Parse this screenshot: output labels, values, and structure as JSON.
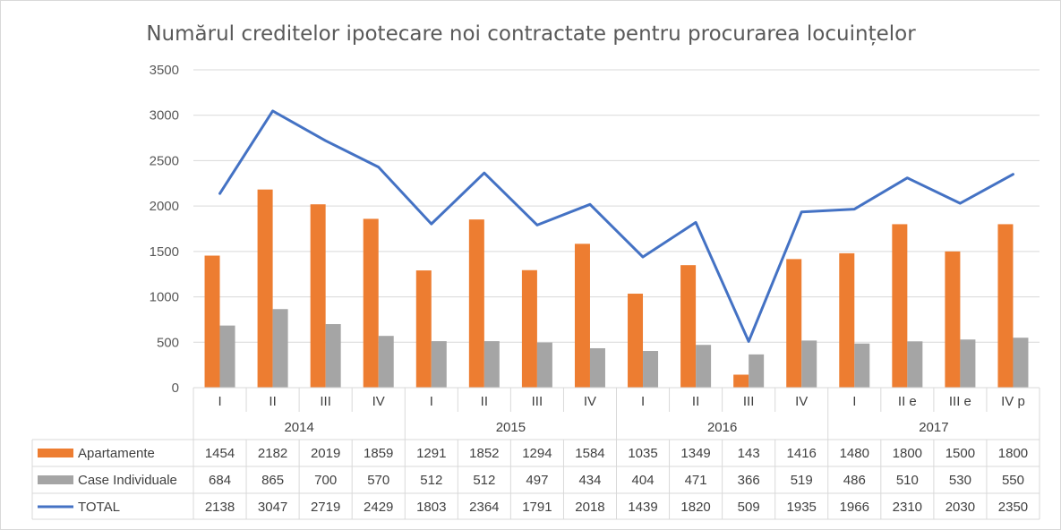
{
  "chart_data": {
    "type": "bar",
    "title": "Numărul creditelor ipotecare noi contractate pentru procurarea locuințelor",
    "ylim": [
      0,
      3500
    ],
    "yticks": [
      0,
      500,
      1000,
      1500,
      2000,
      2500,
      3000,
      3500
    ],
    "grid": true,
    "legend_placement": "bottom (data table)",
    "categories": [
      "I",
      "II",
      "III",
      "IV",
      "I",
      "II",
      "III",
      "IV",
      "I",
      "II",
      "III",
      "IV",
      "I",
      "II e",
      "III e",
      "IV p"
    ],
    "groups": [
      {
        "label": "2014",
        "count": 4
      },
      {
        "label": "2015",
        "count": 4
      },
      {
        "label": "2016",
        "count": 4
      },
      {
        "label": "2017",
        "count": 4
      }
    ],
    "series": [
      {
        "name": "Apartamente",
        "type": "bar",
        "color": "#ED7D31",
        "values": [
          1454,
          2182,
          2019,
          1859,
          1291,
          1852,
          1294,
          1584,
          1035,
          1349,
          143,
          1416,
          1480,
          1800,
          1500,
          1800
        ]
      },
      {
        "name": "Case Individuale",
        "type": "bar",
        "color": "#A5A5A5",
        "values": [
          684,
          865,
          700,
          570,
          512,
          512,
          497,
          434,
          404,
          471,
          366,
          519,
          486,
          510,
          530,
          550
        ]
      },
      {
        "name": "TOTAL",
        "type": "line",
        "color": "#4472C4",
        "values": [
          2138,
          3047,
          2719,
          2429,
          1803,
          2364,
          1791,
          2018,
          1439,
          1820,
          509,
          1935,
          1966,
          2310,
          2030,
          2350
        ]
      }
    ]
  }
}
